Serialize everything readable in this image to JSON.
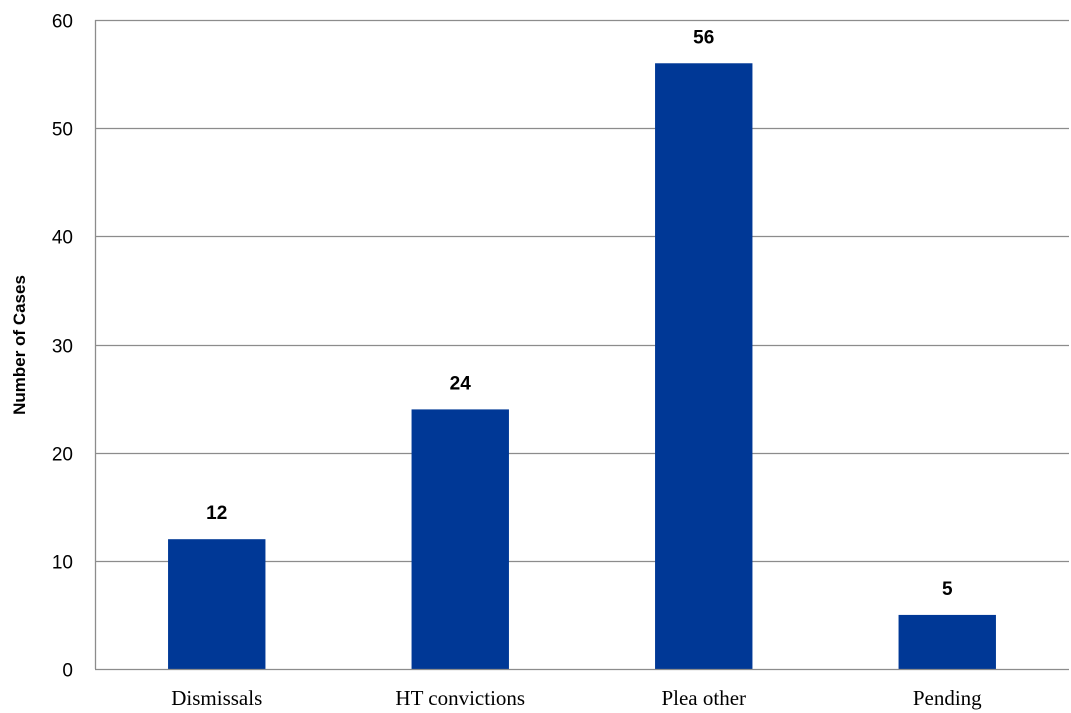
{
  "chart_data": {
    "type": "bar",
    "categories": [
      "Dismissals",
      "HT convictions",
      "Plea other",
      "Pending"
    ],
    "values": [
      12,
      24,
      56,
      5
    ],
    "data_labels": [
      "12",
      "24",
      "56",
      "5"
    ],
    "title": "",
    "xlabel": "",
    "ylabel": "Number of Cases",
    "ylim": [
      0,
      60
    ],
    "yticks": [
      0,
      10,
      20,
      30,
      40,
      50,
      60
    ],
    "ytick_labels": [
      "0",
      "10",
      "20",
      "30",
      "40",
      "50",
      "60"
    ],
    "grid": true,
    "legend": "none",
    "colors": {
      "bar": "#003896",
      "grid": "#8c8c8c",
      "axis": "#8c8c8c"
    }
  }
}
